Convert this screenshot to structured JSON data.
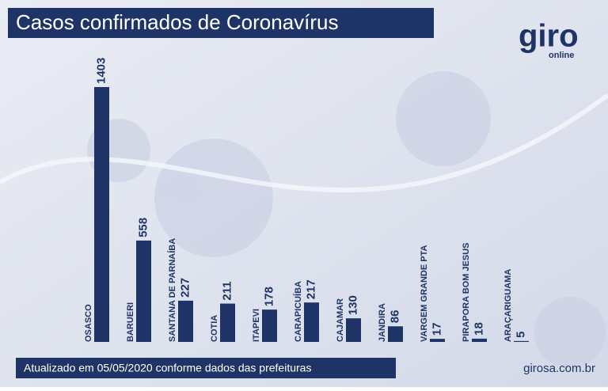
{
  "chart_data": {
    "type": "bar",
    "title": "Casos confirmados de Coronavírus",
    "categories": [
      "OSASCO",
      "BARUERI",
      "SANTANA DE PARNAÍBA",
      "COTIA",
      "ITAPEVI",
      "CARAPICUÍBA",
      "CAJAMAR",
      "JANDIRA",
      "VARGEM GRANDE PTA",
      "PIRAPORA BOM JESUS",
      "ARAÇARIGUAMA"
    ],
    "values": [
      1403,
      558,
      227,
      211,
      178,
      217,
      130,
      86,
      17,
      18,
      5
    ],
    "color": "#1f3466",
    "footnote": "Atualizado em 05/05/2020 conforme dados das prefeituras",
    "source": "girosa.com.br"
  },
  "logo": {
    "name": "giro",
    "tagline": "online"
  }
}
